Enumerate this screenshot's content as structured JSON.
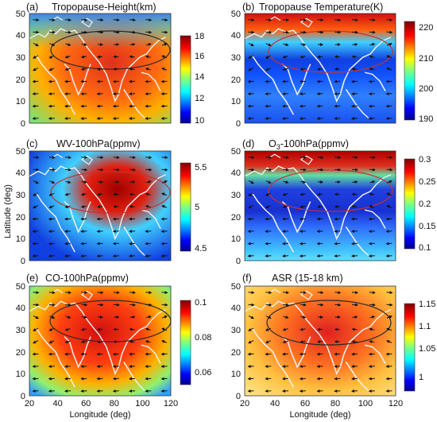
{
  "figure": {
    "ylabel": "Latitude (deg)",
    "xlabel": "Longitude (deg)",
    "x_ticks": [
      "20",
      "40",
      "60",
      "80",
      "100",
      "120"
    ],
    "y_ticks": [
      "0",
      "10",
      "20",
      "30",
      "40",
      "50"
    ],
    "panels": [
      {
        "id": "a",
        "label": "(a)",
        "title": "Tropopause-Height(km)",
        "colorbar_ticks": [
          "18",
          "16",
          "14",
          "12",
          "10"
        ],
        "colormap": "jet",
        "contour_color": "#2a2a2a"
      },
      {
        "id": "b",
        "label": "(b)",
        "title": "Tropopause Temperature(K)",
        "colorbar_ticks": [
          "220",
          "210",
          "200",
          "190"
        ],
        "colormap": "jet",
        "contour_color": "#c83030"
      },
      {
        "id": "c",
        "label": "(c)",
        "title": "WV-100hPa(ppmv)",
        "colorbar_ticks": [
          "5.5",
          "5",
          "4.5"
        ],
        "colormap": "jet",
        "contour_color": "#c83030"
      },
      {
        "id": "d",
        "label": "(d)",
        "title_main": "O",
        "title_sub": "3",
        "title_rest": "-100hPa(ppmv)",
        "colorbar_ticks": [
          "0.3",
          "0.25",
          "0.2",
          "0.15",
          "0.1"
        ],
        "colormap": "jet",
        "contour_color": "#c83030"
      },
      {
        "id": "e",
        "label": "(e)",
        "title": "CO-100hPa(ppmv)",
        "colorbar_ticks": [
          "0.1",
          "0.08",
          "0.06"
        ],
        "colormap": "jet",
        "contour_color": "#2a2a2a"
      },
      {
        "id": "f",
        "label": "(f)",
        "title": "ASR (15-18 km)",
        "colorbar_ticks": [
          "1.15",
          "1.1",
          "1.05",
          "1"
        ],
        "colormap": "jet",
        "contour_color": "#2a2a2a"
      }
    ]
  }
}
